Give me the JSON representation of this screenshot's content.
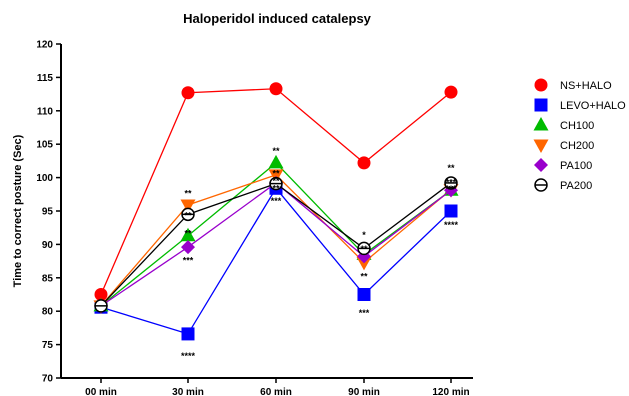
{
  "chart_data": {
    "type": "line",
    "title": "Haloperidol induced catalepsy",
    "xlabel": "",
    "ylabel": "Time to correct posture (Sec)",
    "categories": [
      "00 min",
      "30 min",
      "60 min",
      "90 min",
      "120 min"
    ],
    "ylim": [
      70,
      120
    ],
    "yticks": [
      70,
      75,
      80,
      85,
      90,
      95,
      100,
      105,
      110,
      115,
      120
    ],
    "grid": false,
    "legend_position": "right",
    "series": [
      {
        "name": "NS+HALO",
        "values": [
          82.5,
          112.7,
          113.3,
          102.2,
          112.8
        ],
        "color": "#ff0000",
        "marker": "circle"
      },
      {
        "name": "LEVO+HALO",
        "values": [
          80.6,
          76.6,
          98.4,
          82.5,
          95.0
        ],
        "color": "#0000ff",
        "marker": "square"
      },
      {
        "name": "CH100",
        "values": [
          80.8,
          91.3,
          102.2,
          88.5,
          98.1
        ],
        "color": "#00bb00",
        "marker": "triangle-up"
      },
      {
        "name": "CH200",
        "values": [
          80.8,
          95.9,
          100.4,
          87.3,
          98.2
        ],
        "color": "#ff6600",
        "marker": "triangle-down"
      },
      {
        "name": "PA100",
        "values": [
          80.8,
          89.6,
          99.2,
          88.2,
          98.1
        ],
        "color": "#9900cc",
        "marker": "diamond"
      },
      {
        "name": "PA200",
        "values": [
          80.8,
          94.5,
          99.1,
          89.4,
          99.2
        ],
        "color": "#000000",
        "marker": "open-circle-bar"
      }
    ],
    "annotations": [
      {
        "text": "**",
        "x": "30 min",
        "y": 97.6
      },
      {
        "text": "**",
        "x": "30 min",
        "y": 94.3
      },
      {
        "text": "**",
        "x": "30 min",
        "y": 91.6
      },
      {
        "text": "***",
        "x": "30 min",
        "y": 87.6
      },
      {
        "text": "****",
        "x": "30 min",
        "y": 73.3
      },
      {
        "text": "**",
        "x": "60 min",
        "y": 104.0
      },
      {
        "text": "**",
        "x": "60 min",
        "y": 100.6
      },
      {
        "text": "**",
        "x": "60 min",
        "y": 99.5
      },
      {
        "text": "**",
        "x": "60 min",
        "y": 98.4
      },
      {
        "text": "***",
        "x": "60 min",
        "y": 96.5
      },
      {
        "text": "*",
        "x": "90 min",
        "y": 91.4
      },
      {
        "text": "**",
        "x": "90 min",
        "y": 89.3
      },
      {
        "text": "**",
        "x": "90 min",
        "y": 85.2
      },
      {
        "text": "***",
        "x": "90 min",
        "y": 79.7
      },
      {
        "text": "**",
        "x": "120 min",
        "y": 101.4
      },
      {
        "text": "***",
        "x": "120 min",
        "y": 99.3
      },
      {
        "text": "***",
        "x": "120 min",
        "y": 98.3
      },
      {
        "text": "**",
        "x": "120 min",
        "y": 98.2
      },
      {
        "text": "****",
        "x": "120 min",
        "y": 92.9
      }
    ]
  }
}
